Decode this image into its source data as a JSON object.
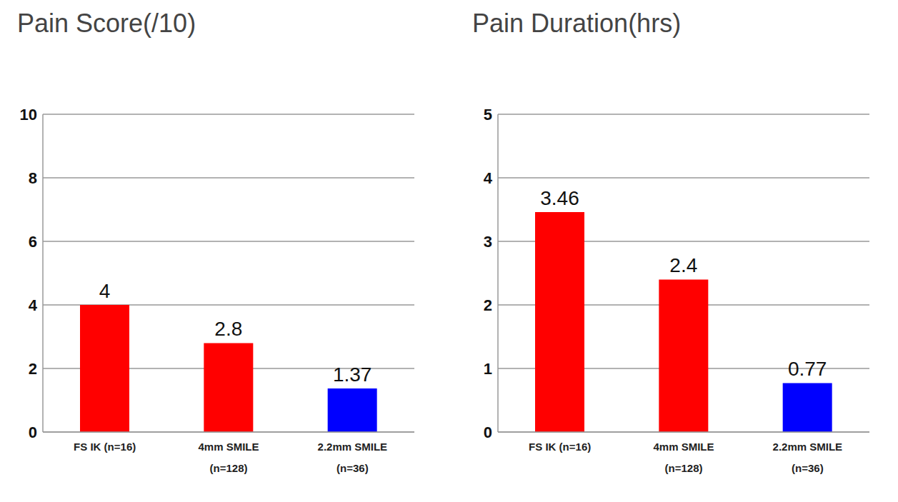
{
  "chart_data": [
    {
      "type": "bar",
      "title": "Pain Score(/10)",
      "categories": [
        "FS IK (n=16)",
        "4mm SMILE (n=128)",
        "2.2mm SMILE (n=36)"
      ],
      "values": [
        4,
        2.8,
        1.37
      ],
      "colors": [
        "#ff0000",
        "#ff0000",
        "#0000ff"
      ],
      "ylim": [
        0,
        10
      ],
      "yticks": [
        0,
        2,
        4,
        6,
        8,
        10
      ],
      "grid": true,
      "data_labels": true
    },
    {
      "type": "bar",
      "title": "Pain Duration(hrs)",
      "categories": [
        "FS IK (n=16)",
        "4mm SMILE (n=128)",
        "2.2mm SMILE (n=36)"
      ],
      "values": [
        3.46,
        2.4,
        0.77
      ],
      "colors": [
        "#ff0000",
        "#ff0000",
        "#0000ff"
      ],
      "ylim": [
        0,
        5
      ],
      "yticks": [
        0,
        1,
        2,
        3,
        4,
        5
      ],
      "grid": true,
      "data_labels": true
    }
  ]
}
